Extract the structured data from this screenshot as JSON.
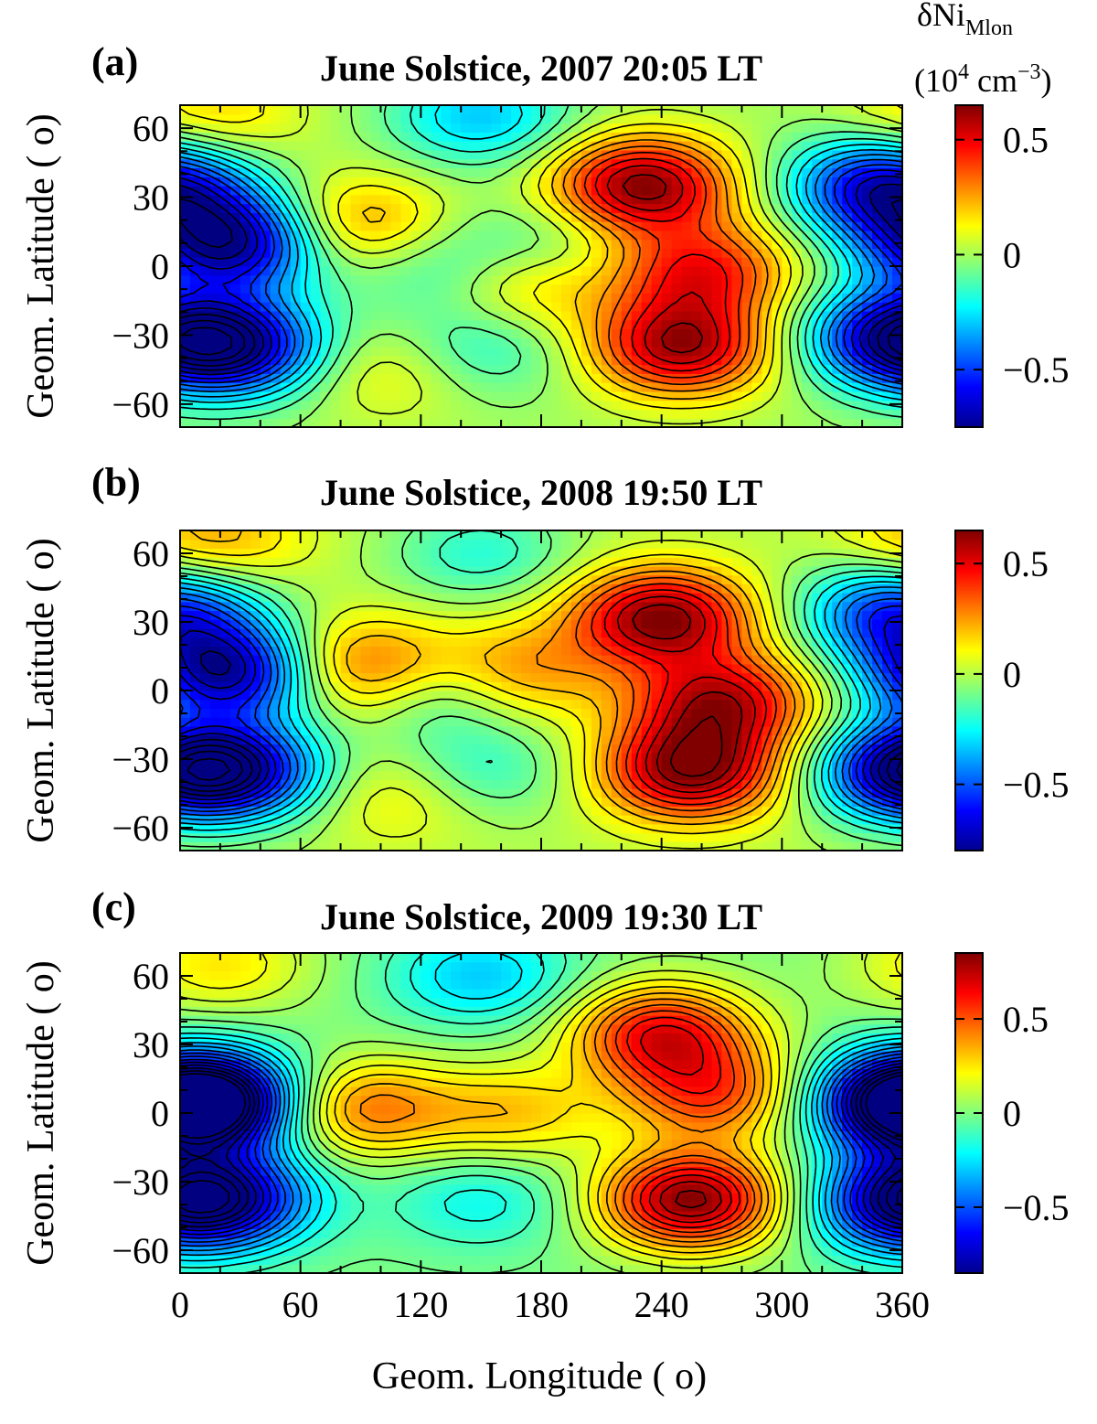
{
  "x_axis_label": "Geom. Longitude ( o)",
  "colorbar_label_line1": "δNi",
  "colorbar_label_sub": "Mlon",
  "colorbar_label_line2": "(10",
  "colorbar_label_exp": "4",
  "colorbar_label_unit": " cm",
  "colorbar_label_unit_exp": "−3",
  "colorbar_label_close": ")",
  "chart_data": [
    {
      "type": "heatmap",
      "panel_label": "(a)",
      "title": "June Solstice, 2007   20:05 LT",
      "xlabel": "",
      "ylabel": "Geom. Latitude ( o)",
      "xlim": [
        0,
        360
      ],
      "ylim": [
        -70,
        70
      ],
      "x_ticks": [
        0,
        60,
        120,
        180,
        240,
        300,
        360
      ],
      "y_ticks": [
        -60,
        -30,
        0,
        30,
        60
      ],
      "colorbar_range": [
        -0.75,
        0.65
      ],
      "colorbar_ticks": [
        -0.5,
        0,
        0.5
      ],
      "colorbar_tick_labels": [
        "−0.5",
        "0",
        "0.5"
      ],
      "features": [
        {
          "lon": 25,
          "lat": 10,
          "value": -0.72
        },
        {
          "lon": 25,
          "lat": -35,
          "value": -0.7
        },
        {
          "lon": 350,
          "lat": 35,
          "value": -0.65
        },
        {
          "lon": 350,
          "lat": -30,
          "value": -0.45
        },
        {
          "lon": 150,
          "lat": 65,
          "value": -0.3
        },
        {
          "lon": 130,
          "lat": 0,
          "value": -0.2
        },
        {
          "lon": 150,
          "lat": -35,
          "value": -0.2
        },
        {
          "lon": 185,
          "lat": 10,
          "value": -0.15
        },
        {
          "lon": 90,
          "lat": 18,
          "value": 0.3
        },
        {
          "lon": 170,
          "lat": -8,
          "value": 0.25
        },
        {
          "lon": 105,
          "lat": -45,
          "value": 0.15
        },
        {
          "lon": 15,
          "lat": 65,
          "value": 0.2
        },
        {
          "lon": 230,
          "lat": 35,
          "value": 0.65
        },
        {
          "lon": 260,
          "lat": -2,
          "value": 0.45
        },
        {
          "lon": 250,
          "lat": -35,
          "value": 0.6
        }
      ]
    },
    {
      "type": "heatmap",
      "panel_label": "(b)",
      "title": "June Solstice, 2008   19:50 LT",
      "xlabel": "",
      "ylabel": "Geom. Latitude ( o)",
      "xlim": [
        0,
        360
      ],
      "ylim": [
        -70,
        70
      ],
      "x_ticks": [
        0,
        60,
        120,
        180,
        240,
        300,
        360
      ],
      "y_ticks": [
        -60,
        -30,
        0,
        30,
        60
      ],
      "colorbar_range": [
        -0.8,
        0.65
      ],
      "colorbar_ticks": [
        -0.5,
        0,
        0.5
      ],
      "colorbar_tick_labels": [
        "−0.5",
        "0",
        "0.5"
      ],
      "features": [
        {
          "lon": 25,
          "lat": 8,
          "value": -0.75
        },
        {
          "lon": 25,
          "lat": -35,
          "value": -0.7
        },
        {
          "lon": 355,
          "lat": 35,
          "value": -0.55
        },
        {
          "lon": 355,
          "lat": -35,
          "value": -0.45
        },
        {
          "lon": 150,
          "lat": 60,
          "value": -0.2
        },
        {
          "lon": 130,
          "lat": 0,
          "value": -0.25
        },
        {
          "lon": 150,
          "lat": -35,
          "value": -0.2
        },
        {
          "lon": 90,
          "lat": 10,
          "value": 0.4
        },
        {
          "lon": 165,
          "lat": 8,
          "value": 0.3
        },
        {
          "lon": 110,
          "lat": -45,
          "value": 0.15
        },
        {
          "lon": 15,
          "lat": 65,
          "value": 0.25
        },
        {
          "lon": 240,
          "lat": 32,
          "value": 0.65
        },
        {
          "lon": 270,
          "lat": -5,
          "value": 0.55
        },
        {
          "lon": 255,
          "lat": -35,
          "value": 0.65
        }
      ]
    },
    {
      "type": "heatmap",
      "panel_label": "(c)",
      "title": "June Solstice, 2009   19:30 LT",
      "xlabel": "Geom. Longitude ( o)",
      "ylabel": "Geom. Latitude ( o)",
      "xlim": [
        0,
        360
      ],
      "ylim": [
        -70,
        70
      ],
      "x_ticks": [
        0,
        60,
        120,
        180,
        240,
        300,
        360
      ],
      "x_tick_labels": [
        "0",
        "60",
        "120",
        "180",
        "240",
        "300",
        "360"
      ],
      "y_ticks": [
        -60,
        -30,
        0,
        30,
        60
      ],
      "colorbar_range": [
        -0.85,
        0.85
      ],
      "colorbar_ticks": [
        -0.5,
        0,
        0.5
      ],
      "colorbar_tick_labels": [
        "−0.5",
        "0",
        "0.5"
      ],
      "features": [
        {
          "lon": 15,
          "lat": 5,
          "value": -0.8
        },
        {
          "lon": 20,
          "lat": -37,
          "value": -0.7
        },
        {
          "lon": 360,
          "lat": 5,
          "value": -0.65
        },
        {
          "lon": 355,
          "lat": -40,
          "value": -0.45
        },
        {
          "lon": 150,
          "lat": 60,
          "value": -0.3
        },
        {
          "lon": 150,
          "lat": -38,
          "value": -0.2
        },
        {
          "lon": 90,
          "lat": 2,
          "value": 0.45
        },
        {
          "lon": 165,
          "lat": 0,
          "value": 0.3
        },
        {
          "lon": 20,
          "lat": 65,
          "value": 0.25
        },
        {
          "lon": 240,
          "lat": 35,
          "value": 0.65
        },
        {
          "lon": 265,
          "lat": 8,
          "value": 0.5
        },
        {
          "lon": 255,
          "lat": -38,
          "value": 0.85
        }
      ]
    }
  ]
}
